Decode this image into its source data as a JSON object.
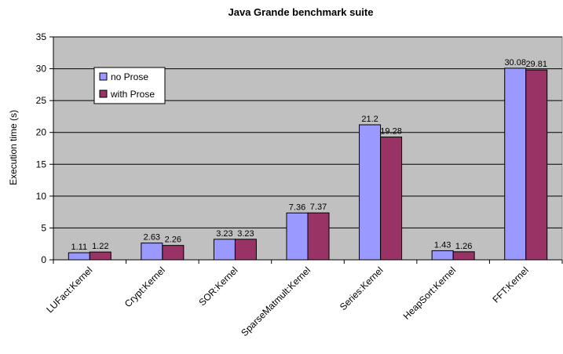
{
  "chart_data": {
    "type": "bar",
    "title": "Java Grande benchmark suite",
    "xlabel": "",
    "ylabel": "Execution time (s)",
    "ylim": [
      0,
      35
    ],
    "yticks": [
      0,
      5,
      10,
      15,
      20,
      25,
      30,
      35
    ],
    "grid": true,
    "legend_position": "top-left",
    "categories": [
      "LUFact:Kernel",
      "Crypt:Kernel",
      "SOR:Kernel",
      "SparseMatmult:Kernel",
      "Series:Kernel",
      "HeapSort:Kernel",
      "FFT:Kernel"
    ],
    "series": [
      {
        "name": "no Prose",
        "color": "#9999ff",
        "values": [
          1.11,
          2.63,
          3.23,
          7.36,
          21.2,
          1.43,
          30.08
        ],
        "labels": [
          "1.11",
          "2.63",
          "3.23",
          "7.36",
          "21.2",
          "1.43",
          "30.08"
        ]
      },
      {
        "name": "with Prose",
        "color": "#993366",
        "values": [
          1.22,
          2.26,
          3.23,
          7.37,
          19.28,
          1.26,
          29.81
        ],
        "labels": [
          "1.22",
          "2.26",
          "3.23",
          "7.37",
          "19.28",
          "1.26",
          "29.81"
        ]
      }
    ],
    "plot_background": "#c0c0c0"
  }
}
